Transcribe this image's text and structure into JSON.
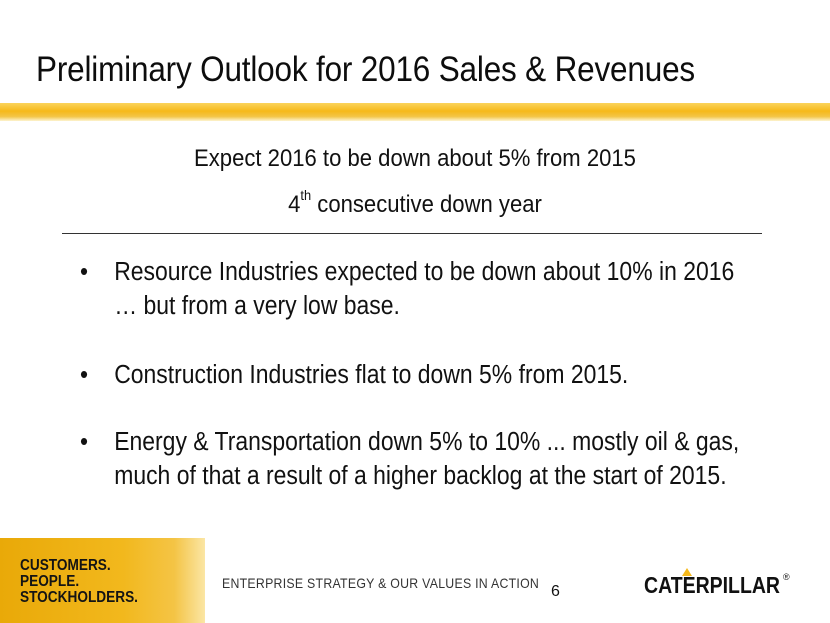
{
  "slide": {
    "title": "Preliminary Outlook for 2016 Sales & Revenues",
    "subtitle_line1": "Expect 2016 to be down about 5% from 2015",
    "subtitle_line2_num": "4",
    "subtitle_line2_sup": "th",
    "subtitle_line2_rest": " consecutive down year",
    "bullet_marker": "•",
    "bullets": [
      {
        "line1": "Resource Industries expected to be down about 10% in 2016",
        "line2": "… but from a very low base."
      },
      {
        "line1": "Construction Industries flat to down 5% from 2015."
      },
      {
        "line1": "Energy & Transportation down 5% to 10% ... mostly oil & gas,",
        "line2": "much of that a result of a higher backlog at the start of 2015."
      }
    ]
  },
  "footer": {
    "tagline": [
      "CUSTOMERS.",
      "PEOPLE.",
      "STOCKHOLDERS."
    ],
    "strategy_text": "ENTERPRISE STRATEGY & OUR VALUES IN ACTION",
    "page_number": "6",
    "logo_text": "CATERPILLAR",
    "logo_registered": "®"
  },
  "colors": {
    "accent_gold": "#f6b91a",
    "text": "#111111"
  }
}
